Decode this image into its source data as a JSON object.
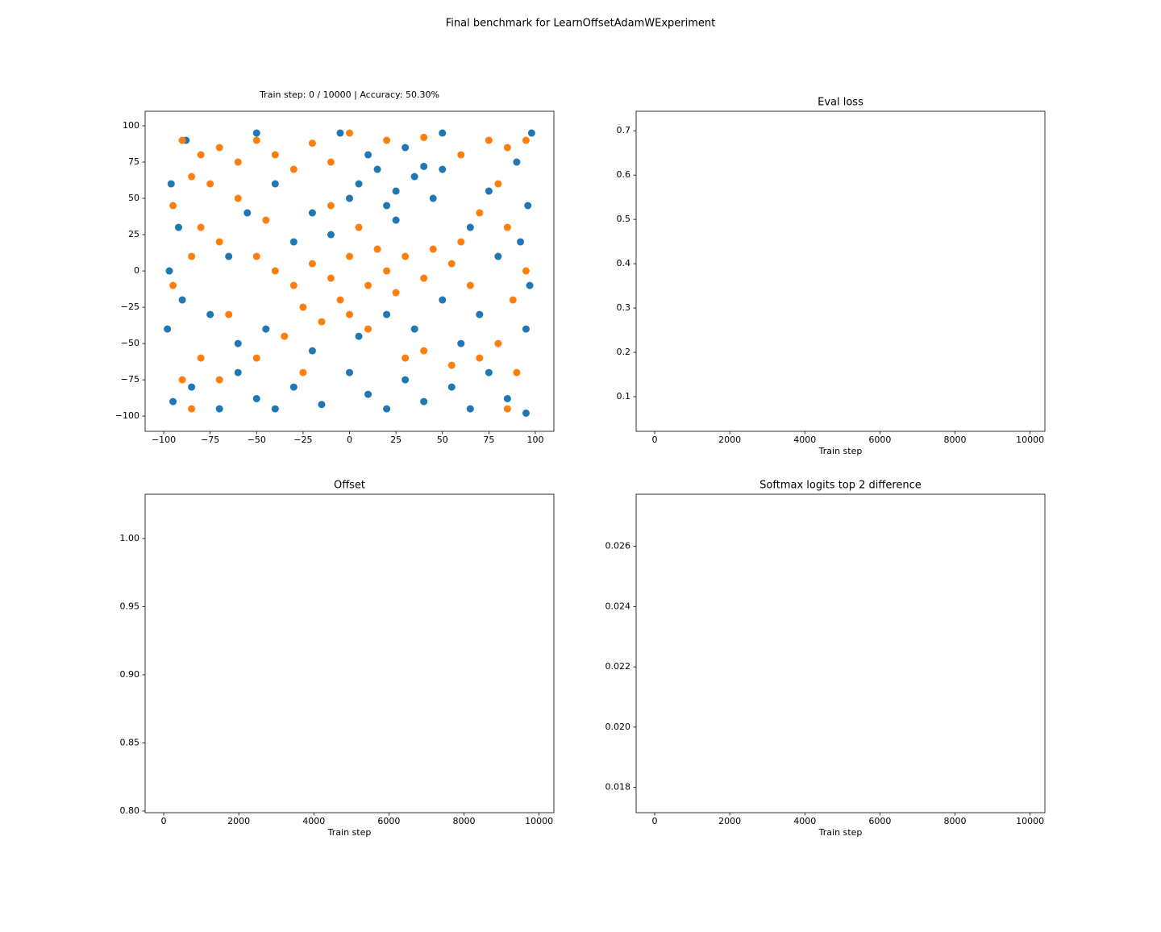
{
  "title": "Final benchmark for LearnOffsetAdamWExperiment",
  "chart_data": [
    {
      "type": "scatter",
      "title": "Train step: 0 / 10000 | Accuracy: 50.30%",
      "xlim": [
        -110,
        110
      ],
      "ylim": [
        -110.5,
        110
      ],
      "xticks": [
        {
          "value": -100,
          "label": "−100"
        },
        {
          "value": -75,
          "label": "−75"
        },
        {
          "value": -50,
          "label": "−50"
        },
        {
          "value": -25,
          "label": "−25"
        },
        0,
        25,
        50,
        75,
        100
      ],
      "yticks": [
        {
          "value": -100,
          "label": "−100"
        },
        {
          "value": -75,
          "label": "−75"
        },
        {
          "value": -50,
          "label": "−50"
        },
        {
          "value": -25,
          "label": "−25"
        },
        0,
        25,
        50,
        75,
        100
      ],
      "series": [
        {
          "color": "#1f77b4",
          "x": [
            -95,
            -85,
            -70,
            -60,
            -50,
            -40,
            -30,
            -15,
            0,
            10,
            20,
            30,
            40,
            55,
            65,
            75,
            85,
            95,
            -98,
            -90,
            -97,
            -92,
            -96,
            -88,
            95,
            97,
            92,
            96,
            90,
            98,
            5,
            15,
            25,
            35,
            45,
            20,
            10,
            30,
            40,
            0,
            50,
            25,
            -20,
            -10,
            -30,
            -40,
            -55,
            -65,
            -75,
            -60,
            -45,
            20,
            35,
            50,
            60,
            70,
            80,
            65,
            75,
            -5,
            50,
            -50,
            -20,
            5
          ],
          "values": [
            -90,
            -80,
            -95,
            -70,
            -88,
            -95,
            -80,
            -92,
            -70,
            -85,
            -95,
            -75,
            -90,
            -80,
            -95,
            -70,
            -88,
            -98,
            -40,
            -20,
            0,
            30,
            60,
            90,
            -40,
            -10,
            20,
            45,
            75,
            95,
            60,
            70,
            55,
            65,
            50,
            45,
            80,
            85,
            72,
            50,
            70,
            35,
            40,
            25,
            20,
            60,
            40,
            10,
            -30,
            -50,
            -40,
            -30,
            -40,
            -20,
            -50,
            -30,
            10,
            30,
            55,
            95,
            95,
            95,
            -55,
            -45
          ]
        },
        {
          "color": "#ff7f0e",
          "x": [
            -90,
            -80,
            -70,
            -85,
            -75,
            -60,
            -50,
            -40,
            -30,
            -20,
            -10,
            -95,
            -80,
            -70,
            -60,
            -50,
            -40,
            -30,
            -20,
            -10,
            0,
            10,
            20,
            -5,
            15,
            30,
            40,
            -25,
            -15,
            0,
            10,
            25,
            45,
            55,
            60,
            70,
            80,
            85,
            95,
            75,
            60,
            85,
            95,
            88,
            80,
            90,
            85,
            70,
            55,
            40,
            30,
            -35,
            -50,
            -65,
            -80,
            -90,
            -85,
            -70,
            -95,
            -85,
            -10,
            5,
            -45,
            65,
            -25,
            0,
            20,
            40
          ],
          "values": [
            90,
            80,
            85,
            65,
            60,
            75,
            90,
            80,
            70,
            88,
            75,
            45,
            30,
            20,
            50,
            10,
            0,
            -10,
            5,
            -5,
            10,
            -10,
            0,
            -20,
            15,
            10,
            -5,
            -25,
            -35,
            -30,
            -40,
            -15,
            15,
            5,
            20,
            40,
            60,
            85,
            90,
            90,
            80,
            30,
            0,
            -20,
            -50,
            -70,
            -95,
            -60,
            -65,
            -55,
            -60,
            -45,
            -60,
            -30,
            -60,
            -75,
            -95,
            -75,
            -10,
            10,
            45,
            30,
            35,
            -10,
            -70,
            95,
            90,
            92
          ]
        }
      ]
    },
    {
      "type": "line",
      "title": "Eval loss",
      "xlabel": "Train step",
      "xlim": [
        -495,
        10395
      ],
      "ylim": [
        0.0218,
        0.744
      ],
      "xticks": [
        0,
        2000,
        4000,
        6000,
        8000,
        10000
      ],
      "yticks": [
        0.1,
        0.2,
        0.3,
        0.4,
        0.5,
        0.6,
        0.7
      ]
    },
    {
      "type": "line",
      "title": "Offset",
      "xlabel": "Train step",
      "xlim": [
        -495,
        10395
      ],
      "ylim": [
        0.7988,
        1.0325
      ],
      "xticks": [
        0,
        2000,
        4000,
        6000,
        8000,
        10000
      ],
      "yticks": [
        {
          "value": 0.8,
          "label": "0.80"
        },
        {
          "value": 0.85,
          "label": "0.85"
        },
        {
          "value": 0.9,
          "label": "0.90"
        },
        {
          "value": 0.95,
          "label": "0.95"
        },
        {
          "value": 1.0,
          "label": "1.00"
        }
      ]
    },
    {
      "type": "line",
      "title": "Softmax logits top 2 difference",
      "xlabel": "Train step",
      "xlim": [
        -495,
        10395
      ],
      "ylim": [
        0.01716,
        0.02773
      ],
      "xticks": [
        0,
        2000,
        4000,
        6000,
        8000,
        10000
      ],
      "yticks": [
        0.018,
        {
          "value": 0.02,
          "label": "0.020"
        },
        0.022,
        0.024,
        0.026
      ]
    }
  ]
}
